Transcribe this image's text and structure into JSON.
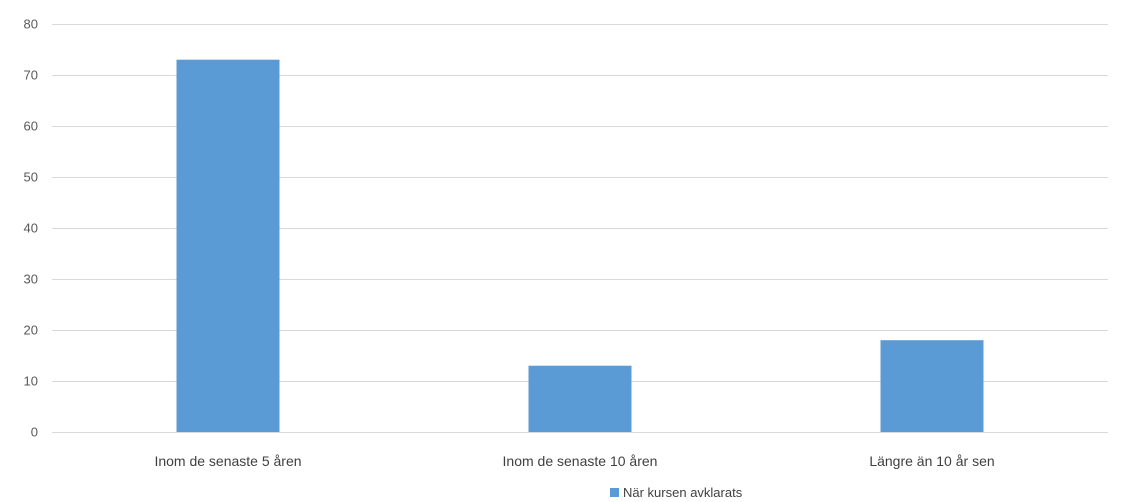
{
  "chart_data": {
    "type": "bar",
    "categories": [
      "Inom de senaste 5 åren",
      "Inom de senaste 10 åren",
      "Längre än 10 år sen"
    ],
    "series": [
      {
        "name": "När kursen avklarats",
        "values": [
          73,
          13,
          18
        ],
        "color": "#5B9BD5"
      }
    ],
    "ylim": [
      0,
      80
    ],
    "yticks": [
      0,
      10,
      20,
      30,
      40,
      50,
      60,
      70,
      80
    ],
    "grid": true,
    "legend_position": "bottom"
  },
  "colors": {
    "bar": "#5B9BD5",
    "grid": "#D9D9D9",
    "tick_text": "#595959",
    "label_text": "#404040"
  }
}
